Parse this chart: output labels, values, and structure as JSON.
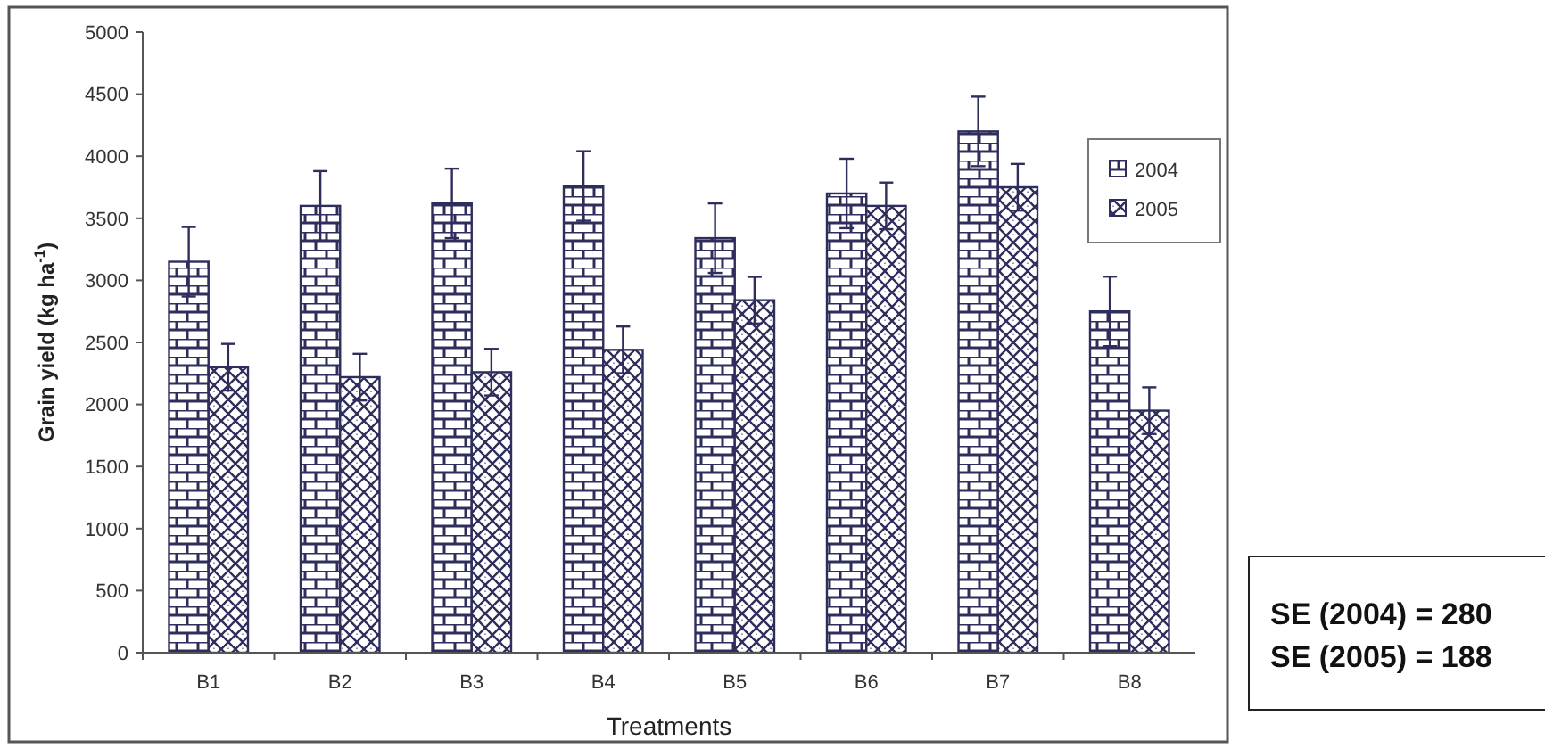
{
  "chart_data": {
    "type": "bar",
    "xlabel": "Treatments",
    "ylabel": "Grain yield (kg ha$^{-1}$)",
    "categories": [
      "B1",
      "B2",
      "B3",
      "B4",
      "B5",
      "B6",
      "B7",
      "B8"
    ],
    "series": [
      {
        "name": "2004",
        "color": "#2e2e5c",
        "values": [
          3150,
          3600,
          3620,
          3760,
          3340,
          3700,
          4200,
          2750
        ],
        "errors": [
          280,
          280,
          280,
          280,
          280,
          280,
          280,
          280
        ]
      },
      {
        "name": "2005",
        "color": "#2e2e5c",
        "values": [
          2300,
          2220,
          2260,
          2440,
          2840,
          3600,
          3750,
          1950
        ],
        "errors": [
          188,
          188,
          188,
          188,
          188,
          188,
          188,
          188
        ]
      }
    ],
    "ylim": [
      0,
      5000
    ],
    "yticks": [
      0,
      500,
      1000,
      1500,
      2000,
      2500,
      3000,
      3500,
      4000,
      4500,
      5000
    ],
    "grid": false,
    "legend": "top right",
    "annotations": [
      "SE (2004) = 280",
      "SE (2005) = 188"
    ]
  }
}
